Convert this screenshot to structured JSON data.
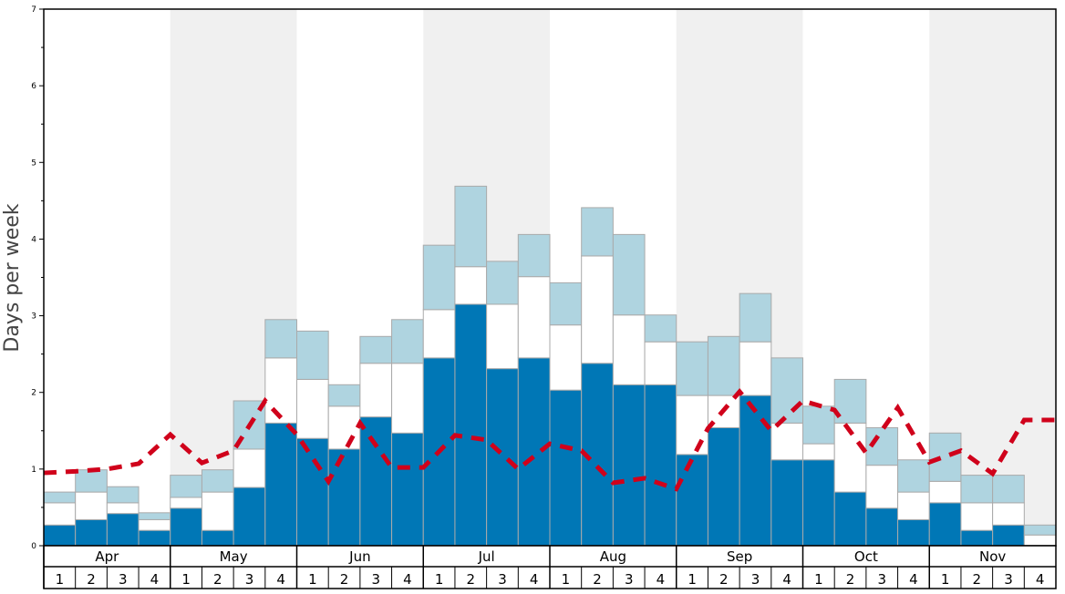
{
  "chart_data": {
    "type": "bar",
    "stacked": true,
    "ylabel": "Days per week",
    "ylim": [
      0,
      7
    ],
    "yticks": [
      "0",
      "1",
      "2",
      "3",
      "4",
      "5",
      "6",
      "7"
    ],
    "months": [
      "Apr",
      "May",
      "Jun",
      "Jul",
      "Aug",
      "Sep",
      "Oct",
      "Nov"
    ],
    "week_labels": [
      "1",
      "2",
      "3",
      "4"
    ],
    "shaded_months": [
      "May",
      "Jul",
      "Sep",
      "Nov"
    ],
    "colors": {
      "dark": "#0077b6",
      "middle": "#ffffff",
      "light": "#afd4e0",
      "line": "#d0021b",
      "shade": "#f0f0f0",
      "bar_edge": "#aaaaaa"
    },
    "series": [
      {
        "values": [
          0.27,
          0.34,
          0.42,
          0.2,
          0.49,
          0.2,
          0.76,
          1.6,
          1.4,
          1.26,
          1.68,
          1.47,
          2.45,
          3.15,
          2.31,
          2.45,
          2.03,
          2.38,
          2.1,
          2.1,
          1.19,
          1.54,
          1.96,
          1.12,
          1.12,
          0.7,
          0.49,
          0.34,
          0.56,
          0.2,
          0.27,
          0.0
        ]
      },
      {
        "values": [
          0.29,
          0.36,
          0.14,
          0.14,
          0.14,
          0.5,
          0.5,
          0.85,
          0.77,
          0.56,
          0.7,
          0.91,
          0.63,
          0.49,
          0.84,
          1.06,
          0.85,
          1.4,
          0.91,
          0.56,
          0.77,
          0.42,
          0.7,
          0.48,
          0.21,
          0.9,
          0.56,
          0.36,
          0.28,
          0.36,
          0.29,
          0.14
        ]
      },
      {
        "values": [
          0.14,
          0.29,
          0.21,
          0.09,
          0.29,
          0.29,
          0.63,
          0.5,
          0.63,
          0.28,
          0.35,
          0.57,
          0.84,
          1.05,
          0.56,
          0.55,
          0.55,
          0.63,
          1.05,
          0.35,
          0.7,
          0.77,
          0.63,
          0.85,
          0.49,
          0.57,
          0.49,
          0.42,
          0.63,
          0.36,
          0.36,
          0.13
        ]
      }
    ],
    "line": {
      "style": "dashed",
      "values": [
        0.95,
        0.97,
        1.0,
        1.07,
        1.45,
        1.08,
        1.24,
        1.89,
        1.45,
        0.84,
        1.6,
        1.02,
        1.02,
        1.44,
        1.38,
        1.0,
        1.33,
        1.24,
        0.82,
        0.88,
        0.74,
        1.53,
        2.01,
        1.5,
        1.89,
        1.77,
        1.21,
        1.8,
        1.09,
        1.24,
        0.94,
        1.64,
        1.64
      ]
    },
    "grid": false,
    "legend": "none"
  }
}
